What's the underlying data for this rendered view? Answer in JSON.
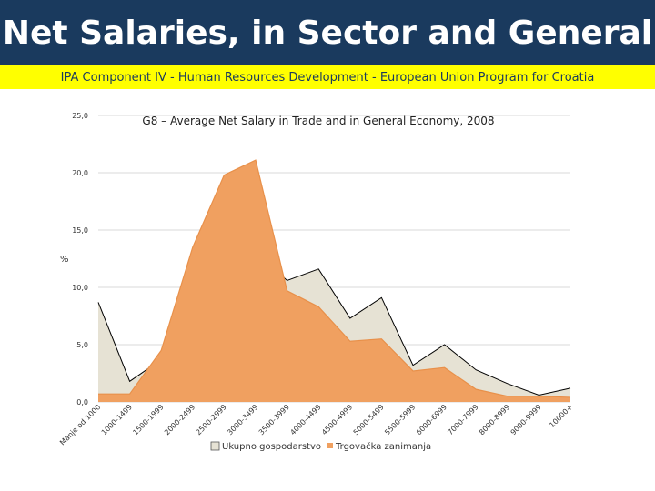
{
  "header": {
    "title": "Net Salaries, in Sector and General"
  },
  "subtitle": "IPA Component IV - Human Resources Development - European Union Program for Croatia",
  "chart_data": {
    "type": "area",
    "title": "G8 – Average Net Salary in Trade and in General Economy, 2008",
    "ylabel": "%",
    "ylim": [
      0,
      25
    ],
    "yticks": [
      "0,0",
      "5,0",
      "10,0",
      "15,0",
      "20,0",
      "25,0"
    ],
    "ytick_values": [
      0,
      5,
      10,
      15,
      20,
      25
    ],
    "categories": [
      "Manje od 1000",
      "1000-1499",
      "1500-1999",
      "2000-2499",
      "2500-2999",
      "3000-3499",
      "3500-3999",
      "4000-4499",
      "4500-4999",
      "5000-5499",
      "5500-5999",
      "6000-6999",
      "7000-7999",
      "8000-8999",
      "9000-9999",
      "10000+"
    ],
    "series": [
      {
        "name": "Ukupno gospodarstvo",
        "color": "#e6e2d4",
        "stroke": "#000000",
        "values": [
          8.7,
          1.8,
          3.7,
          9.0,
          10.6,
          13.1,
          10.6,
          11.6,
          7.3,
          9.1,
          3.2,
          5.0,
          2.8,
          1.6,
          0.6,
          1.2
        ]
      },
      {
        "name": "Trgovačka zanimanja",
        "color": "#f0a060",
        "stroke": "#e8904a",
        "values": [
          0.7,
          0.7,
          4.5,
          13.5,
          19.8,
          21.1,
          9.7,
          8.3,
          5.3,
          5.5,
          2.7,
          3.0,
          1.1,
          0.5,
          0.5,
          0.4
        ]
      }
    ]
  }
}
